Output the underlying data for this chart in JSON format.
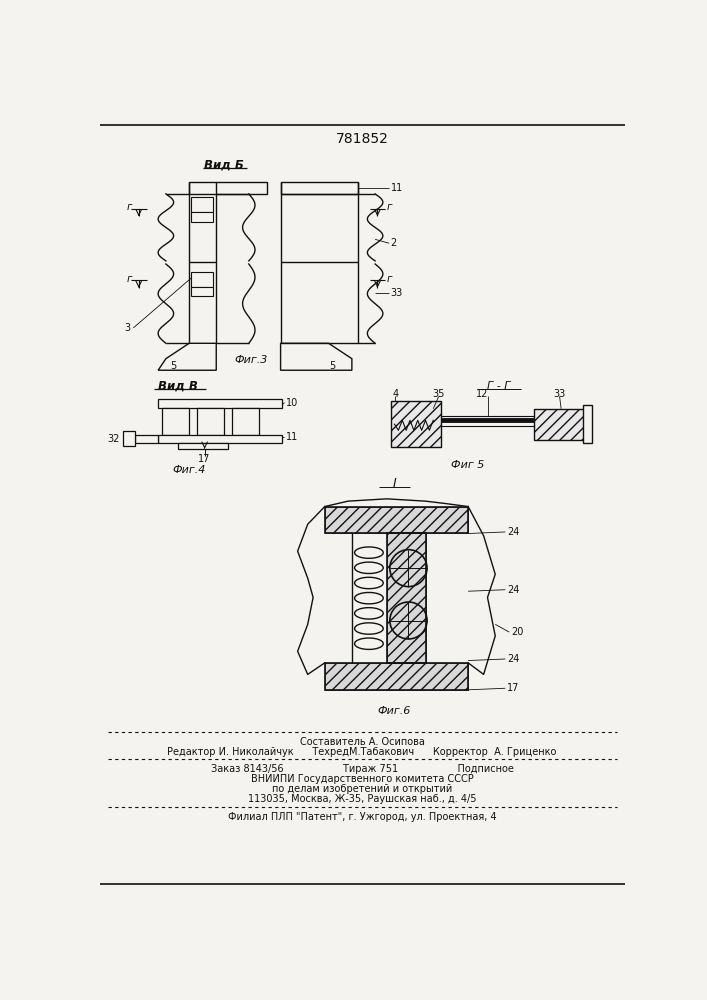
{
  "patent_number": "781852",
  "background_color": "#f5f3ef",
  "fig3_label": "Вид Б",
  "fig4_label": "Вид В",
  "fig5_label": "Фиг 5",
  "fig6_label": "Фиг.6",
  "fig3_caption": "Фиг.3",
  "fig4_caption": "Фиг.4",
  "footer_lines": [
    "Составитель А. Осипова",
    "Редактор И. Николайчук      ТехредМ.Табакович      Корректор  А. Гриценко",
    "Заказ 8143/56                   Тираж 751                   Подписное",
    "ВНИИПИ Государственного комитета СССР",
    "по делам изобретений и открытий",
    "113035, Москва, Ж-35, Раушская наб., д. 4/5",
    "Филиал ПЛП \"Патент\", г. Ужгород, ул. Проектная, 4"
  ],
  "line_color": "#111111",
  "text_color": "#111111"
}
